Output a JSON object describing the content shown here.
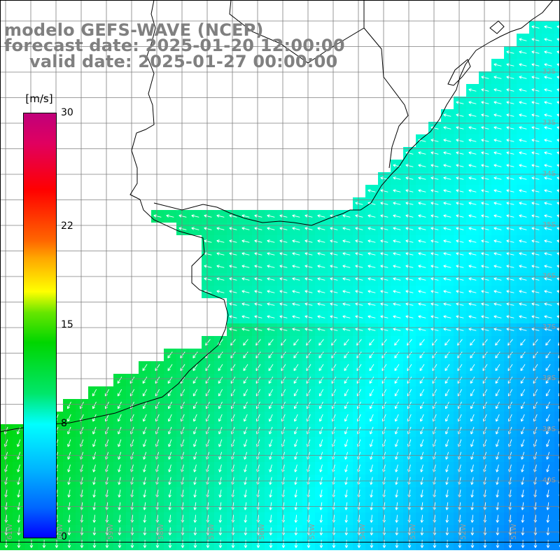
{
  "header": {
    "model_line": "modelo GEFS-WAVE (NCEP)",
    "forecast_line": "forecast date: 2025-01-20 12:00:00",
    "valid_line": "valid date: 2025-01-27 00:00:00"
  },
  "colorbar": {
    "unit": "[m/s]",
    "min": 0,
    "max": 30,
    "ticks": [
      "30",
      "22",
      "15",
      "8",
      "0"
    ],
    "tick_values": [
      30,
      22,
      15,
      8,
      0
    ]
  },
  "map": {
    "lon_range": [
      -61,
      -50
    ],
    "lat_range": [
      -41,
      -31
    ],
    "lat_labels": [
      "32S",
      "33S",
      "34S",
      "35S",
      "36S",
      "37S",
      "38S",
      "39S",
      "40S"
    ],
    "lat_values": [
      -32,
      -33,
      -34,
      -35,
      -36,
      -37,
      -38,
      -39,
      -40
    ],
    "lon_labels": [
      "61W",
      "60W",
      "59W",
      "58W",
      "57W",
      "56W",
      "55W",
      "54W",
      "53W",
      "52W",
      "51W"
    ],
    "lon_values": [
      -61,
      -60,
      -59,
      -58,
      -57,
      -56,
      -55,
      -54,
      -53,
      -52,
      -51
    ],
    "land_color": "#ffffff",
    "grid_color": "#7f7f7f",
    "coast_color": "#000000",
    "arrow_color": "#ffffff"
  }
}
